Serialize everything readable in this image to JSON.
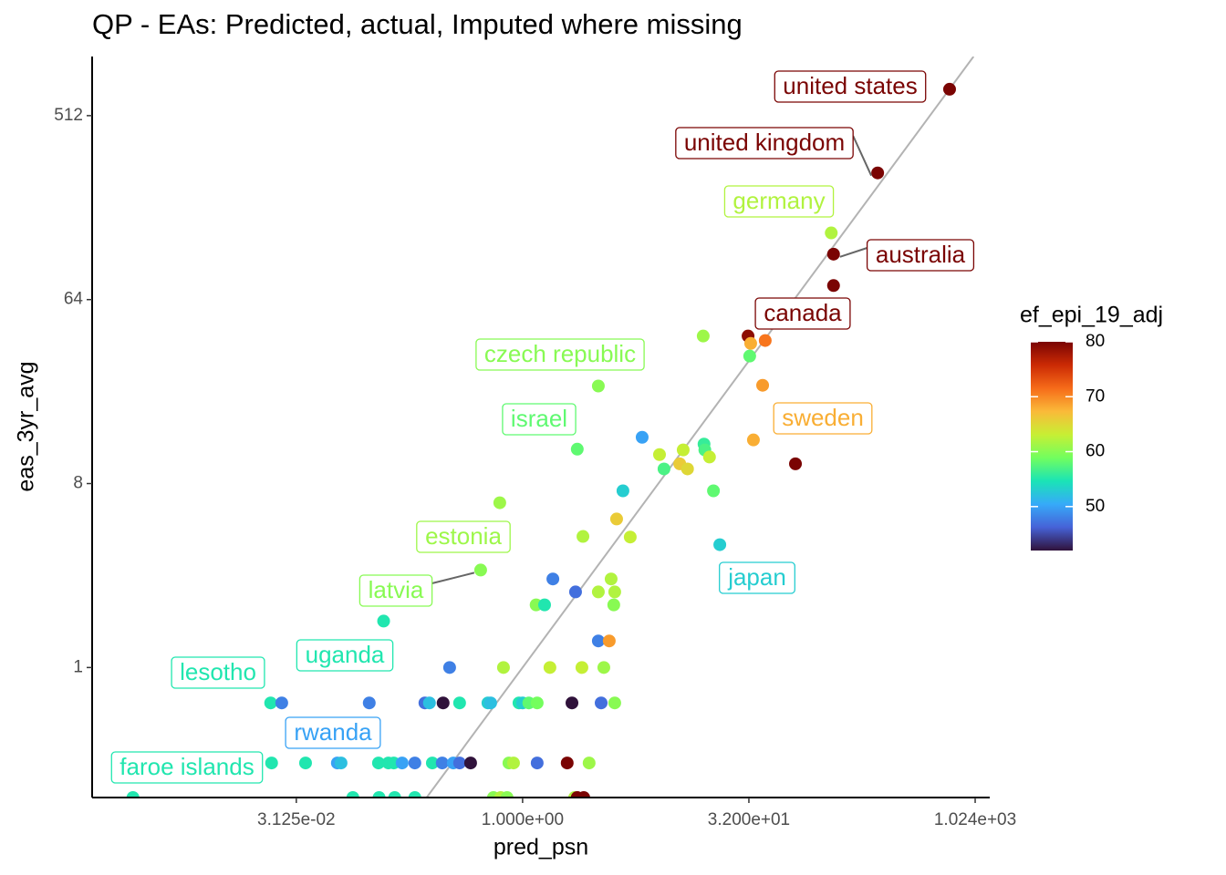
{
  "chart_data": {
    "type": "scatter",
    "title": "QP - EAs: Predicted, actual, Imputed where missing",
    "x_label": "pred_psn",
    "y_label": "eas_3yr_avg",
    "log_x": true,
    "log_y": true,
    "xlim": [
      0.00137,
      1280
    ],
    "ylim": [
      0.23,
      999
    ],
    "xticks": [
      {
        "value": 0.03125,
        "label": "3.125e-02"
      },
      {
        "value": 1,
        "label": "1.000e+00"
      },
      {
        "value": 32,
        "label": "3.200e+01"
      },
      {
        "value": 1024,
        "label": "1.024e+03"
      }
    ],
    "yticks": [
      1,
      8,
      64,
      512
    ],
    "x": [
      692,
      230,
      113,
      117,
      117,
      15.9,
      31.6,
      32.9,
      41.1,
      32.4,
      39.5,
      3.19,
      34.3,
      65.3,
      2.31,
      6.24,
      16.1,
      16.3,
      8.14,
      11.7,
      17.5,
      11.1,
      12.5,
      8.72,
      4.65,
      18.6,
      0.705,
      4.22,
      2.52,
      5.2,
      20.5,
      0.526,
      1.59,
      2.25,
      3.88,
      3.19,
      4.1,
      1.23,
      1.4,
      4.04,
      0.119,
      3.19,
      3.77,
      0.327,
      0.746,
      1.52,
      2.48,
      3.47,
      0.0211,
      0.025,
      0.0955,
      0.224,
      0.24,
      0.296,
      0.381,
      0.588,
      0.613,
      0.946,
      1,
      1.1,
      1.25,
      2.13,
      3.33,
      4.1,
      0.0214,
      0.036,
      0.0586,
      0.062,
      0.11,
      0.128,
      0.139,
      0.158,
      0.192,
      0.251,
      0.292,
      0.346,
      0.381,
      0.451,
      0.811,
      0.87,
      1.25,
      1.98,
      2.77,
      0.00256,
      0.0743,
      0.111,
      0.141,
      0.192,
      0.64,
      0.715,
      0.788,
      2.22,
      2.55,
      2.31
    ],
    "y": [
      690,
      268,
      136,
      107,
      75,
      42.4,
      42.4,
      39,
      40.3,
      33.8,
      24.3,
      24.1,
      13.1,
      10,
      11.8,
      13.5,
      12.5,
      11.7,
      11.1,
      11.7,
      10.8,
      10,
      9.44,
      9.44,
      7.37,
      7.37,
      6.44,
      5.36,
      4.4,
      4.37,
      4.01,
      3.01,
      2.72,
      2.35,
      2.72,
      2.35,
      2.35,
      2.03,
      2.03,
      2.03,
      1.69,
      1.35,
      1.35,
      1,
      1,
      1,
      1,
      1,
      0.67,
      0.67,
      0.67,
      0.67,
      0.67,
      0.67,
      0.67,
      0.67,
      0.67,
      0.67,
      0.67,
      0.67,
      0.67,
      0.67,
      0.67,
      0.67,
      0.34,
      0.34,
      0.34,
      0.34,
      0.34,
      0.34,
      0.34,
      0.34,
      0.34,
      0.34,
      0.34,
      0.34,
      0.34,
      0.34,
      0.34,
      0.34,
      0.34,
      0.34,
      0.34,
      0.23,
      0.23,
      0.23,
      0.23,
      0.23,
      0.23,
      0.23,
      0.23,
      0.23,
      0.23,
      0.23
    ],
    "color_values": [
      80,
      80,
      62,
      80,
      80,
      61,
      79,
      68,
      71,
      58,
      69,
      60,
      68,
      80,
      58,
      50,
      56,
      57,
      63,
      63,
      63,
      66,
      65,
      57,
      53,
      58,
      61,
      66,
      62,
      63,
      53,
      60,
      48,
      47,
      62,
      62,
      62,
      60,
      55,
      60,
      55,
      48,
      69,
      48,
      62,
      63,
      63,
      61,
      55,
      48,
      48,
      47,
      52,
      42,
      55,
      53,
      52,
      55,
      53,
      58,
      59,
      42,
      47,
      60,
      55,
      55,
      50,
      52,
      55,
      55,
      55,
      50,
      48,
      55,
      48,
      50,
      47,
      42,
      60,
      62,
      47,
      80,
      61,
      55,
      55,
      55,
      55,
      55,
      60,
      62,
      60,
      62,
      80,
      80
    ],
    "point_labels": [
      "united states",
      "united kingdom",
      "germany",
      "australia",
      "canada",
      null,
      null,
      null,
      null,
      null,
      null,
      "czech republic",
      "sweden",
      null,
      "israel",
      null,
      null,
      null,
      null,
      null,
      null,
      null,
      null,
      null,
      null,
      null,
      "estonia",
      null,
      null,
      null,
      "japan",
      "latvia",
      null,
      null,
      null,
      null,
      null,
      null,
      null,
      null,
      "uganda",
      null,
      null,
      null,
      null,
      null,
      null,
      null,
      "lesotho",
      null,
      null,
      null,
      null,
      null,
      null,
      null,
      null,
      null,
      null,
      null,
      null,
      null,
      null,
      null,
      "faroe islands",
      null,
      "rwanda",
      null,
      null,
      null,
      null,
      null,
      null,
      null,
      null,
      null,
      null,
      null,
      null,
      null,
      null,
      null,
      null,
      null,
      null,
      null,
      null,
      null,
      null,
      null,
      null,
      null,
      null,
      null
    ],
    "color_scale": {
      "title": "ef_epi_19_adj",
      "lim": [
        42,
        80
      ],
      "ticks": [
        50,
        60,
        70,
        80
      ],
      "colors": [
        "#30123B",
        "#4662D7",
        "#36AAF9",
        "#1AE4B6",
        "#72FE5E",
        "#C7EF34",
        "#FABA39",
        "#F66B19",
        "#CB2A04",
        "#7A0403"
      ]
    },
    "line_color": "#b3b3b3"
  }
}
